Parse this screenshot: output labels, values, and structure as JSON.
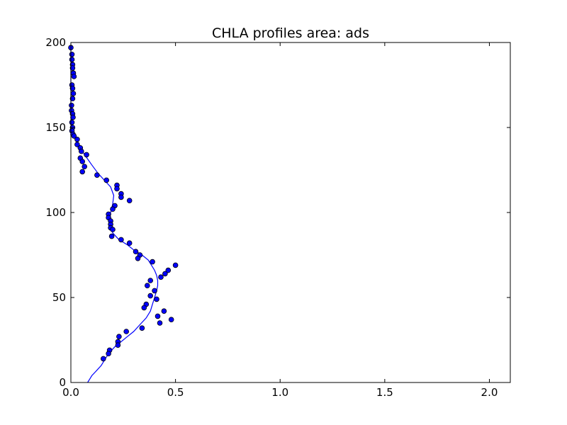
{
  "chart_data": {
    "type": "scatter",
    "title": "CHLA profiles area: ads",
    "xlabel": "",
    "ylabel": "",
    "xlim": [
      0,
      2.1
    ],
    "ylim": [
      0,
      200
    ],
    "grid": false,
    "colors": {
      "marker": "#0000ff",
      "line": "#0000ff",
      "edge": "#000000"
    },
    "x_ticks": [
      {
        "value": 0.0,
        "label": "0.0"
      },
      {
        "value": 0.5,
        "label": "0.5"
      },
      {
        "value": 1.0,
        "label": "1.0"
      },
      {
        "value": 1.5,
        "label": "1.5"
      },
      {
        "value": 2.0,
        "label": "2.0"
      }
    ],
    "y_ticks": [
      {
        "value": 0,
        "label": "0"
      },
      {
        "value": 50,
        "label": "50"
      },
      {
        "value": 100,
        "label": "100"
      },
      {
        "value": 150,
        "label": "150"
      },
      {
        "value": 200,
        "label": "200"
      }
    ],
    "series": [
      {
        "kind": "scatter",
        "points": [
          [
            0.0,
            197
          ],
          [
            0.005,
            193
          ],
          [
            0.005,
            190
          ],
          [
            0.008,
            187
          ],
          [
            0.008,
            185
          ],
          [
            0.012,
            182
          ],
          [
            0.015,
            180
          ],
          [
            0.005,
            175
          ],
          [
            0.008,
            173
          ],
          [
            0.012,
            170
          ],
          [
            0.008,
            167
          ],
          [
            0.003,
            163
          ],
          [
            0.003,
            160
          ],
          [
            0.008,
            158
          ],
          [
            0.01,
            156
          ],
          [
            0.005,
            153
          ],
          [
            0.008,
            150
          ],
          [
            0.005,
            148
          ],
          [
            0.01,
            146
          ],
          [
            0.015,
            145
          ],
          [
            0.03,
            143
          ],
          [
            0.03,
            140
          ],
          [
            0.045,
            138
          ],
          [
            0.05,
            136
          ],
          [
            0.075,
            134
          ],
          [
            0.045,
            132
          ],
          [
            0.055,
            130
          ],
          [
            0.065,
            127
          ],
          [
            0.055,
            124
          ],
          [
            0.125,
            122
          ],
          [
            0.17,
            119
          ],
          [
            0.22,
            116
          ],
          [
            0.22,
            114
          ],
          [
            0.24,
            111
          ],
          [
            0.24,
            109
          ],
          [
            0.28,
            107
          ],
          [
            0.21,
            104
          ],
          [
            0.2,
            102
          ],
          [
            0.18,
            99
          ],
          [
            0.18,
            97
          ],
          [
            0.19,
            95
          ],
          [
            0.19,
            93
          ],
          [
            0.19,
            91
          ],
          [
            0.2,
            90
          ],
          [
            0.195,
            86
          ],
          [
            0.24,
            84
          ],
          [
            0.28,
            82
          ],
          [
            0.31,
            77
          ],
          [
            0.33,
            75
          ],
          [
            0.32,
            73
          ],
          [
            0.39,
            71
          ],
          [
            0.5,
            69
          ],
          [
            0.465,
            66
          ],
          [
            0.45,
            64
          ],
          [
            0.43,
            62
          ],
          [
            0.38,
            60
          ],
          [
            0.365,
            57
          ],
          [
            0.4,
            54
          ],
          [
            0.38,
            51
          ],
          [
            0.41,
            49
          ],
          [
            0.36,
            46
          ],
          [
            0.35,
            44
          ],
          [
            0.445,
            42
          ],
          [
            0.415,
            39
          ],
          [
            0.48,
            37
          ],
          [
            0.425,
            35
          ],
          [
            0.34,
            32
          ],
          [
            0.265,
            30
          ],
          [
            0.23,
            27
          ],
          [
            0.225,
            24
          ],
          [
            0.225,
            22
          ],
          [
            0.185,
            19
          ],
          [
            0.18,
            17
          ],
          [
            0.155,
            14
          ]
        ]
      },
      {
        "kind": "line",
        "points": [
          [
            0.0,
            198
          ],
          [
            0.0,
            160
          ],
          [
            0.005,
            150
          ],
          [
            0.01,
            147
          ],
          [
            0.03,
            142
          ],
          [
            0.06,
            135
          ],
          [
            0.1,
            128
          ],
          [
            0.13,
            123
          ],
          [
            0.16,
            119
          ],
          [
            0.19,
            115
          ],
          [
            0.205,
            110
          ],
          [
            0.2,
            105
          ],
          [
            0.19,
            100
          ],
          [
            0.185,
            96
          ],
          [
            0.19,
            92
          ],
          [
            0.2,
            88
          ],
          [
            0.23,
            84
          ],
          [
            0.27,
            81
          ],
          [
            0.3,
            78
          ],
          [
            0.34,
            75
          ],
          [
            0.37,
            72
          ],
          [
            0.385,
            69
          ],
          [
            0.4,
            66
          ],
          [
            0.41,
            63
          ],
          [
            0.415,
            60
          ],
          [
            0.415,
            57
          ],
          [
            0.41,
            54
          ],
          [
            0.4,
            50
          ],
          [
            0.39,
            46
          ],
          [
            0.38,
            42
          ],
          [
            0.36,
            38
          ],
          [
            0.33,
            34
          ],
          [
            0.3,
            30
          ],
          [
            0.27,
            27
          ],
          [
            0.24,
            24
          ],
          [
            0.21,
            21
          ],
          [
            0.18,
            17
          ],
          [
            0.16,
            13
          ],
          [
            0.145,
            10
          ],
          [
            0.13,
            8
          ],
          [
            0.115,
            6
          ],
          [
            0.1,
            4
          ],
          [
            0.09,
            2
          ],
          [
            0.08,
            0
          ]
        ]
      }
    ]
  }
}
